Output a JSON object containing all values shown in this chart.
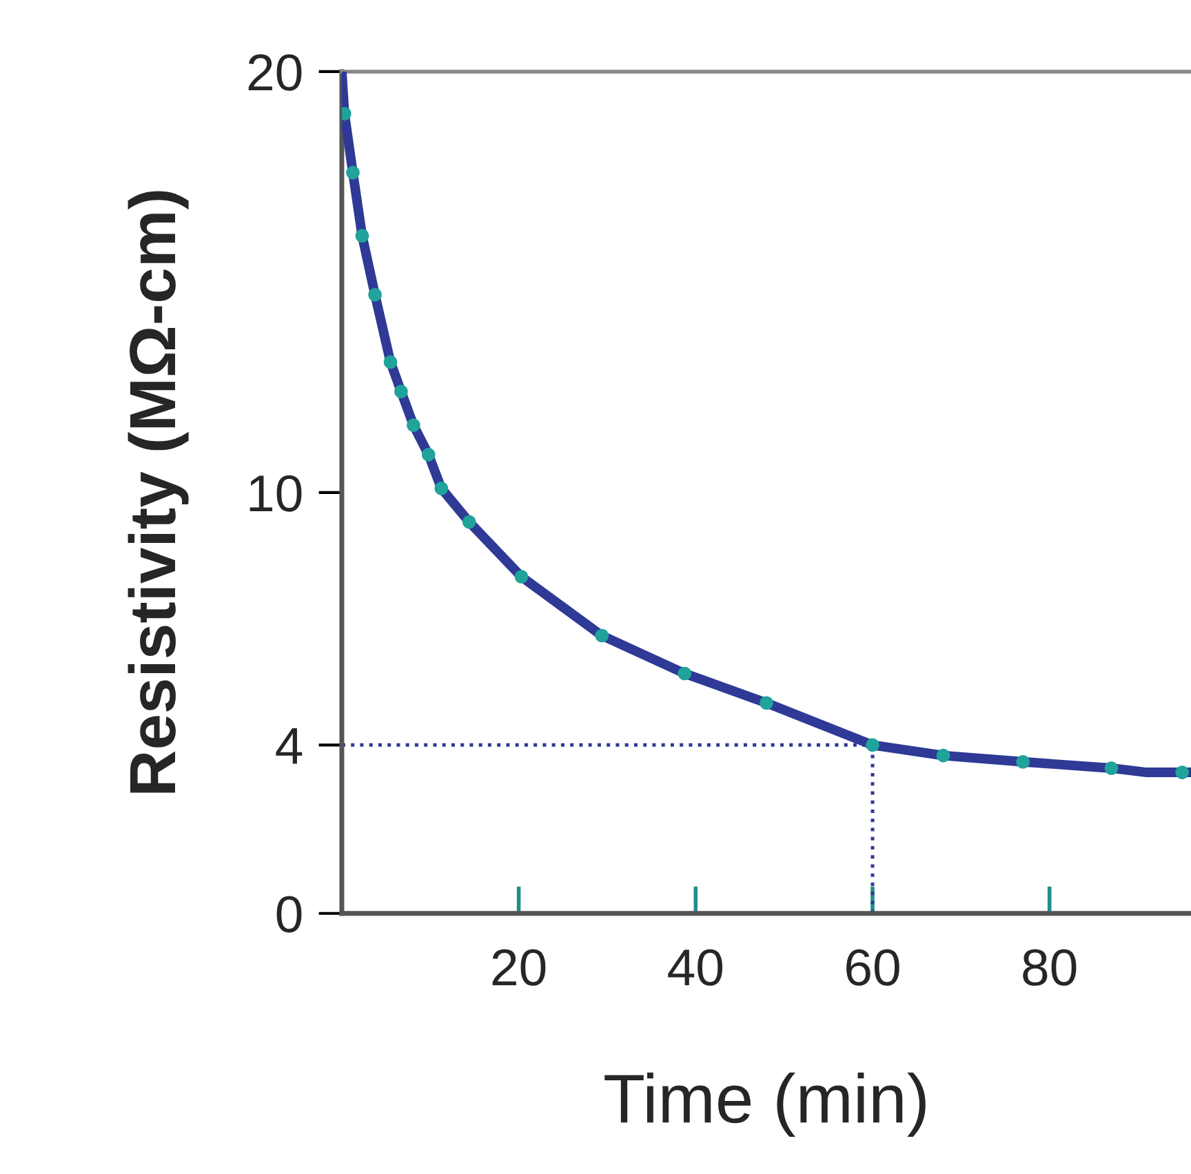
{
  "chart_data": {
    "type": "line",
    "xlabel": "Time (min)",
    "ylabel": "Resistivity (MΩ-cm)",
    "xlim": [
      0,
      96
    ],
    "ylim": [
      0,
      20
    ],
    "xticks": [
      20,
      40,
      60,
      80
    ],
    "yticks": [
      0,
      4,
      10,
      20
    ],
    "series": [
      {
        "color": "#2e3a96",
        "x": [
          0,
          0.3,
          1.25,
          2.3,
          3.75,
          5.5,
          6.7,
          8.1,
          9.8,
          11.25,
          14.4,
          20.3,
          29.4,
          38.75,
          48,
          60,
          68,
          77,
          87,
          91,
          96
        ],
        "values": [
          20,
          19,
          17.6,
          16.1,
          14.7,
          13.1,
          12.4,
          11.6,
          10.9,
          10.1,
          9.3,
          8.0,
          6.6,
          5.7,
          5.0,
          4.0,
          3.75,
          3.6,
          3.45,
          3.35,
          3.35
        ]
      },
      {
        "type": "scatter",
        "color": "#1fa39a",
        "x": [
          0.3,
          1.25,
          2.3,
          3.75,
          5.5,
          6.7,
          8.1,
          9.8,
          11.25,
          14.4,
          20.3,
          29.4,
          38.75,
          48,
          60,
          68,
          77,
          87,
          95
        ],
        "values": [
          19,
          17.6,
          16.1,
          14.7,
          13.1,
          12.4,
          11.6,
          10.9,
          10.1,
          9.3,
          8.0,
          6.6,
          5.7,
          5.0,
          4.0,
          3.75,
          3.6,
          3.45,
          3.35
        ]
      }
    ],
    "ref_lines": [
      {
        "axis": "y",
        "value": 4,
        "color": "#2e3a96",
        "line_style": "dotted"
      },
      {
        "axis": "x",
        "value": 60,
        "color": "#2e3a96",
        "line_style": "dotted"
      }
    ],
    "grid": false,
    "legend": false
  }
}
